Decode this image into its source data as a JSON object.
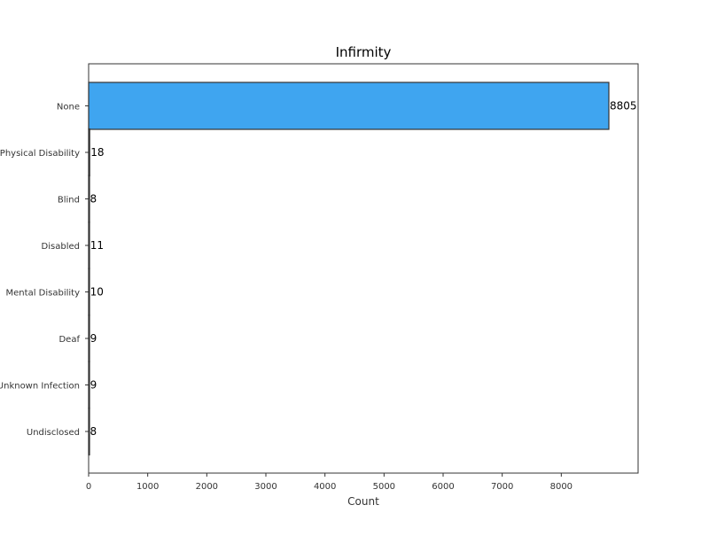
{
  "chart_data": {
    "type": "bar",
    "orientation": "horizontal",
    "title": "Infirmity",
    "xlabel": "Count",
    "ylabel": "",
    "categories": [
      "None",
      "Physical Disability",
      "Blind",
      "Disabled",
      "Mental Disability",
      "Deaf",
      "Unknown Infection",
      "Undisclosed"
    ],
    "values": [
      8805,
      18,
      8,
      11,
      10,
      9,
      9,
      8
    ],
    "data_labels": [
      "8805",
      "18",
      "8",
      "11",
      "10",
      "9",
      "9",
      "8"
    ],
    "xlim": [
      0,
      9300
    ],
    "xticks": [
      0,
      1000,
      2000,
      3000,
      4000,
      5000,
      6000,
      7000,
      8000
    ],
    "xtick_labels": [
      "0",
      "1000",
      "2000",
      "3000",
      "4000",
      "5000",
      "6000",
      "7000",
      "8000"
    ],
    "grid": false,
    "bar_color": "#3fa5f0",
    "bar_edge_color": "#333333"
  }
}
